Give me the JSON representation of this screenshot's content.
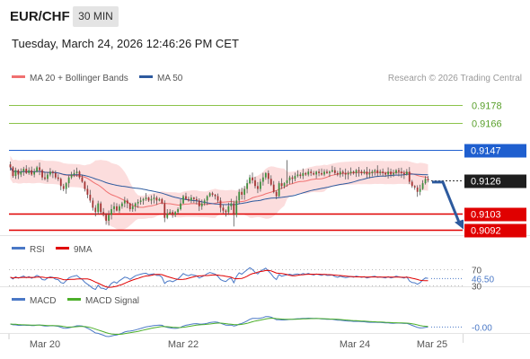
{
  "header": {
    "symbol": "EUR/CHF",
    "interval": "30 MIN",
    "datetime": "Tuesday, March 24, 2026 12:46:26 PM CET"
  },
  "chart_data": [
    {
      "type": "candlestick",
      "legend": [
        {
          "name": "MA 20 + Bollinger Bands",
          "color": "#f07070"
        },
        {
          "name": "MA 50",
          "color": "#2d5a9e"
        }
      ],
      "credit": "Research © 2026 Trading Central",
      "y_range": [
        0.9088,
        0.919
      ],
      "levels": [
        {
          "value": 0.9178,
          "label": "0.9178",
          "kind": "resistance-target",
          "color": "#8bc34a"
        },
        {
          "value": 0.9166,
          "label": "0.9166",
          "kind": "resistance-target",
          "color": "#8bc34a"
        },
        {
          "value": 0.9147,
          "label": "0.9147",
          "kind": "pivot",
          "color": "#1f5fcf"
        },
        {
          "value": 0.9126,
          "label": "0.9126",
          "kind": "last-price",
          "color": "#1e1e1e"
        },
        {
          "value": 0.9103,
          "label": "0.9103",
          "kind": "support-target",
          "color": "#e00000"
        },
        {
          "value": 0.9092,
          "label": "0.9092",
          "kind": "support-target",
          "color": "#e00000"
        }
      ],
      "projection": {
        "from": 0.9126,
        "to": 0.9092,
        "direction": "down",
        "color": "#2d5a9e"
      },
      "closes": [
        0.9135,
        0.9129,
        0.9133,
        0.913,
        0.9132,
        0.9134,
        0.9131,
        0.9133,
        0.913,
        0.9132,
        0.9135,
        0.9133,
        0.9128,
        0.9127,
        0.913,
        0.9132,
        0.9131,
        0.9128,
        0.9127,
        0.9122,
        0.912,
        0.9124,
        0.9128,
        0.913,
        0.9131,
        0.9132,
        0.9128,
        0.9125,
        0.912,
        0.9116,
        0.9112,
        0.9107,
        0.9104,
        0.911,
        0.9104,
        0.9102,
        0.9098,
        0.9102,
        0.9106,
        0.9108,
        0.9105,
        0.9108,
        0.911,
        0.9112,
        0.911,
        0.9106,
        0.9108,
        0.911,
        0.9111,
        0.9112,
        0.9113,
        0.9114,
        0.9112,
        0.9113,
        0.9114,
        0.9112,
        0.9113,
        0.911,
        0.91,
        0.9103,
        0.9104,
        0.9102,
        0.9104,
        0.9106,
        0.911,
        0.9115,
        0.9113,
        0.9112,
        0.9114,
        0.9113,
        0.9112,
        0.9108,
        0.911,
        0.9112,
        0.9115,
        0.9117,
        0.9116,
        0.9115,
        0.9112,
        0.9107,
        0.9105,
        0.9104,
        0.9108,
        0.911,
        0.9102,
        0.9112,
        0.9118,
        0.9116,
        0.912,
        0.9124,
        0.9128,
        0.9126,
        0.9122,
        0.912,
        0.9125,
        0.9128,
        0.9131,
        0.9127,
        0.9123,
        0.9118,
        0.9115,
        0.9124,
        0.9122,
        0.9124,
        0.9126,
        0.9128,
        0.9127,
        0.9129,
        0.913,
        0.9129,
        0.9131,
        0.913,
        0.9132,
        0.9131,
        0.913,
        0.9132,
        0.9131,
        0.913,
        0.9132,
        0.9131,
        0.9132,
        0.9133,
        0.9131,
        0.913,
        0.9132,
        0.9131,
        0.913,
        0.9131,
        0.9132,
        0.9131,
        0.9133,
        0.9132,
        0.9131,
        0.9132,
        0.913,
        0.9131,
        0.9132,
        0.9133,
        0.9131,
        0.9132,
        0.9131,
        0.913,
        0.9132,
        0.913,
        0.9131,
        0.9133,
        0.9132,
        0.9131,
        0.913,
        0.9132,
        0.9125,
        0.9122,
        0.9121,
        0.9118,
        0.912,
        0.9124,
        0.9127,
        0.9126
      ]
    },
    {
      "type": "line",
      "legend": [
        {
          "name": "RSI",
          "color": "#4a78c6"
        },
        {
          "name": "9MA",
          "color": "#e00000"
        }
      ],
      "ticks": [
        {
          "value": 70,
          "label": "70"
        },
        {
          "value": 30,
          "label": "30"
        }
      ],
      "current_label": "46.50",
      "current_value": 46.5,
      "y_range": [
        0,
        100
      ]
    },
    {
      "type": "line",
      "legend": [
        {
          "name": "MACD",
          "color": "#4a78c6"
        },
        {
          "name": "MACD Signal",
          "color": "#4caf2a"
        }
      ],
      "current_label": "-0.00"
    }
  ],
  "x_axis": {
    "ticks": [
      "Mar 20",
      "Mar 22",
      "Mar 24",
      "Mar 25"
    ]
  }
}
